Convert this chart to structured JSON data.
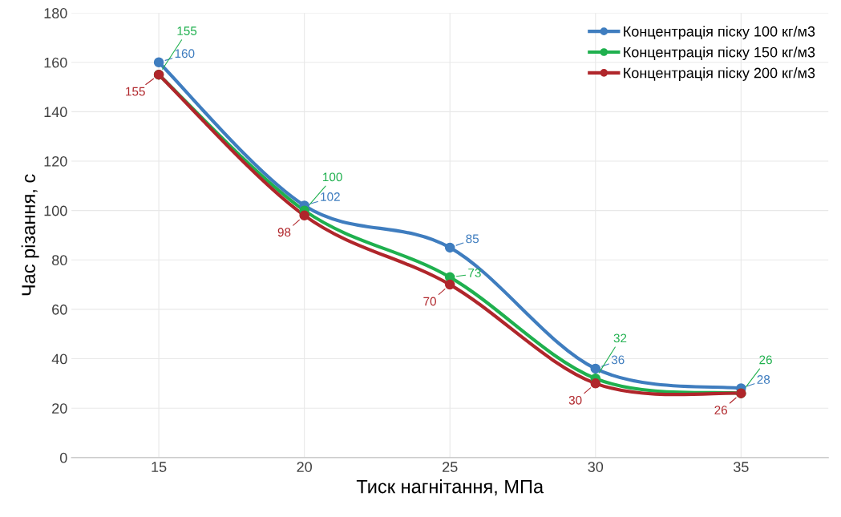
{
  "chart_data": {
    "type": "line",
    "xlabel": "Тиск нагнітання, МПа",
    "ylabel": "Час різання, с",
    "categories": [
      "15",
      "20",
      "25",
      "30",
      "35"
    ],
    "series": [
      {
        "name": "Концентрація піску 100 кг/м3",
        "color": "#3f7dbf",
        "values": [
          160,
          102,
          85,
          36,
          28
        ]
      },
      {
        "name": "Концентрація піску 150 кг/м3",
        "color": "#1fb04e",
        "values": [
          155,
          100,
          73,
          32,
          26
        ]
      },
      {
        "name": "Концентрація піску 200 кг/м3",
        "color": "#b0262b",
        "values": [
          155,
          98,
          70,
          30,
          26
        ]
      }
    ],
    "ylim": [
      0,
      180
    ],
    "yticks": [
      0,
      20,
      40,
      60,
      80,
      100,
      120,
      140,
      160,
      180
    ],
    "grid": true,
    "legend": "top right",
    "marker": "circle",
    "line_style": "solid",
    "data_labels": true
  }
}
